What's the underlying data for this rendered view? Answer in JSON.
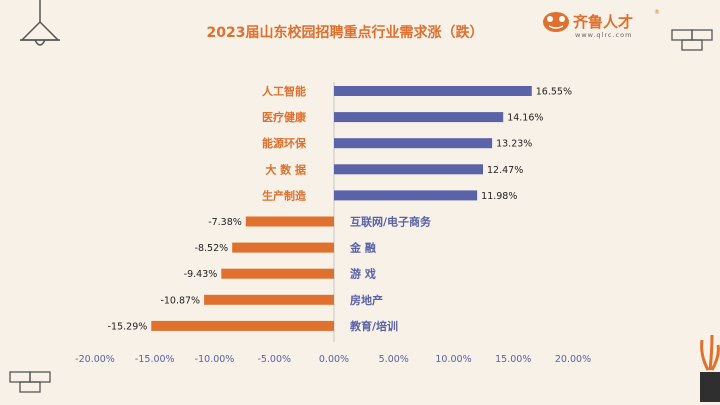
{
  "brand": {
    "name": "齐鲁人才",
    "url": "www.qlrc.com",
    "mark": "®",
    "accent": "#e0702e"
  },
  "chart_data": {
    "type": "bar",
    "orientation": "horizontal",
    "title": "2023届山东校园招聘重点行业需求涨（跌）",
    "categories": [
      "人工智能",
      "医疗健康",
      "能源环保",
      "大 数 据",
      "生产制造",
      "互联网/电子商务",
      "金 融",
      "游 戏",
      "房地产",
      "教育/培训"
    ],
    "values": [
      16.55,
      14.16,
      13.23,
      12.47,
      11.98,
      -7.38,
      -8.52,
      -9.43,
      -10.87,
      -15.29
    ],
    "value_labels": [
      "16.55%",
      "14.16%",
      "13.23%",
      "12.47%",
      "11.98%",
      "-7.38%",
      "-8.52%",
      "-9.43%",
      "-10.87%",
      "-15.29%"
    ],
    "xlim": [
      -20,
      20
    ],
    "xticks": [
      -20,
      -15,
      -10,
      -5,
      0,
      5,
      10,
      15,
      20
    ],
    "xtick_labels": [
      "-20.00%",
      "-15.00%",
      "-10.00%",
      "-5.00%",
      "0.00%",
      "5.00%",
      "10.00%",
      "15.00%",
      "20.00%"
    ],
    "positive_color": "#5a62a8",
    "negative_color": "#e0702e",
    "grid": false,
    "xlabel": "",
    "ylabel": ""
  }
}
